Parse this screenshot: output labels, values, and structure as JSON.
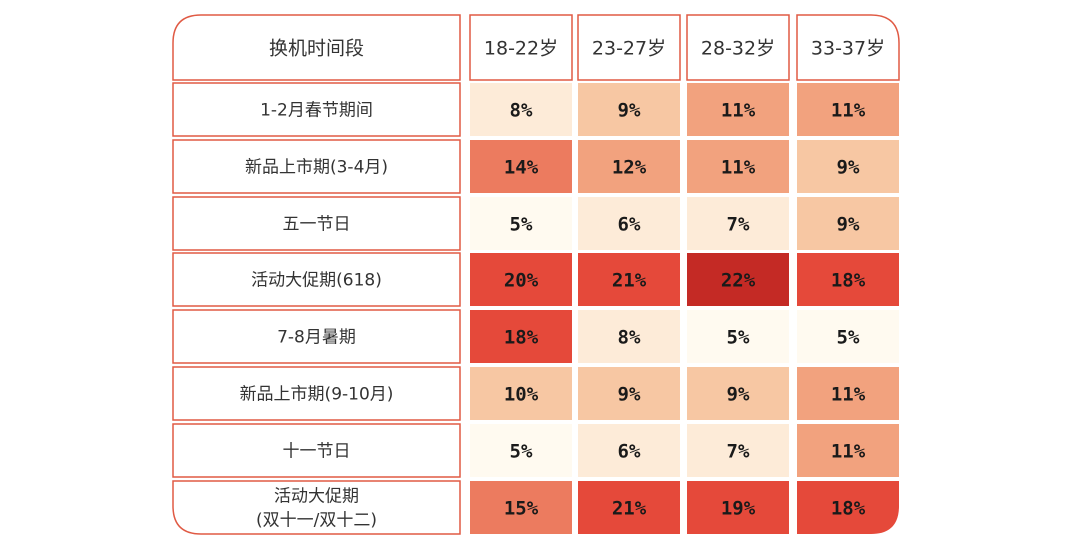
{
  "chart_data": {
    "type": "heatmap",
    "corner_label": "换机时间段",
    "columns": [
      "18-22岁",
      "23-27岁",
      "28-32岁",
      "33-37岁"
    ],
    "rows": [
      "1-2月春节期间",
      "新品上市期(3-4月)",
      "五一节日",
      "活动大促期(618)",
      "7-8月暑期",
      "新品上市期(9-10月)",
      "十一节日",
      "活动大促期\n(双十一/双十二)"
    ],
    "values": [
      [
        8,
        9,
        11,
        11
      ],
      [
        14,
        12,
        11,
        9
      ],
      [
        5,
        6,
        7,
        9
      ],
      [
        20,
        21,
        22,
        18
      ],
      [
        18,
        8,
        5,
        5
      ],
      [
        10,
        9,
        9,
        11
      ],
      [
        5,
        6,
        7,
        11
      ],
      [
        15,
        21,
        19,
        18
      ]
    ],
    "value_suffix": "%",
    "colors": {
      "border": "#e05a44",
      "scale": [
        "#fffaf0",
        "#fdebd8",
        "#f7c7a3",
        "#f2a27e",
        "#ec7b5f",
        "#e5493a",
        "#c42a25"
      ]
    }
  }
}
